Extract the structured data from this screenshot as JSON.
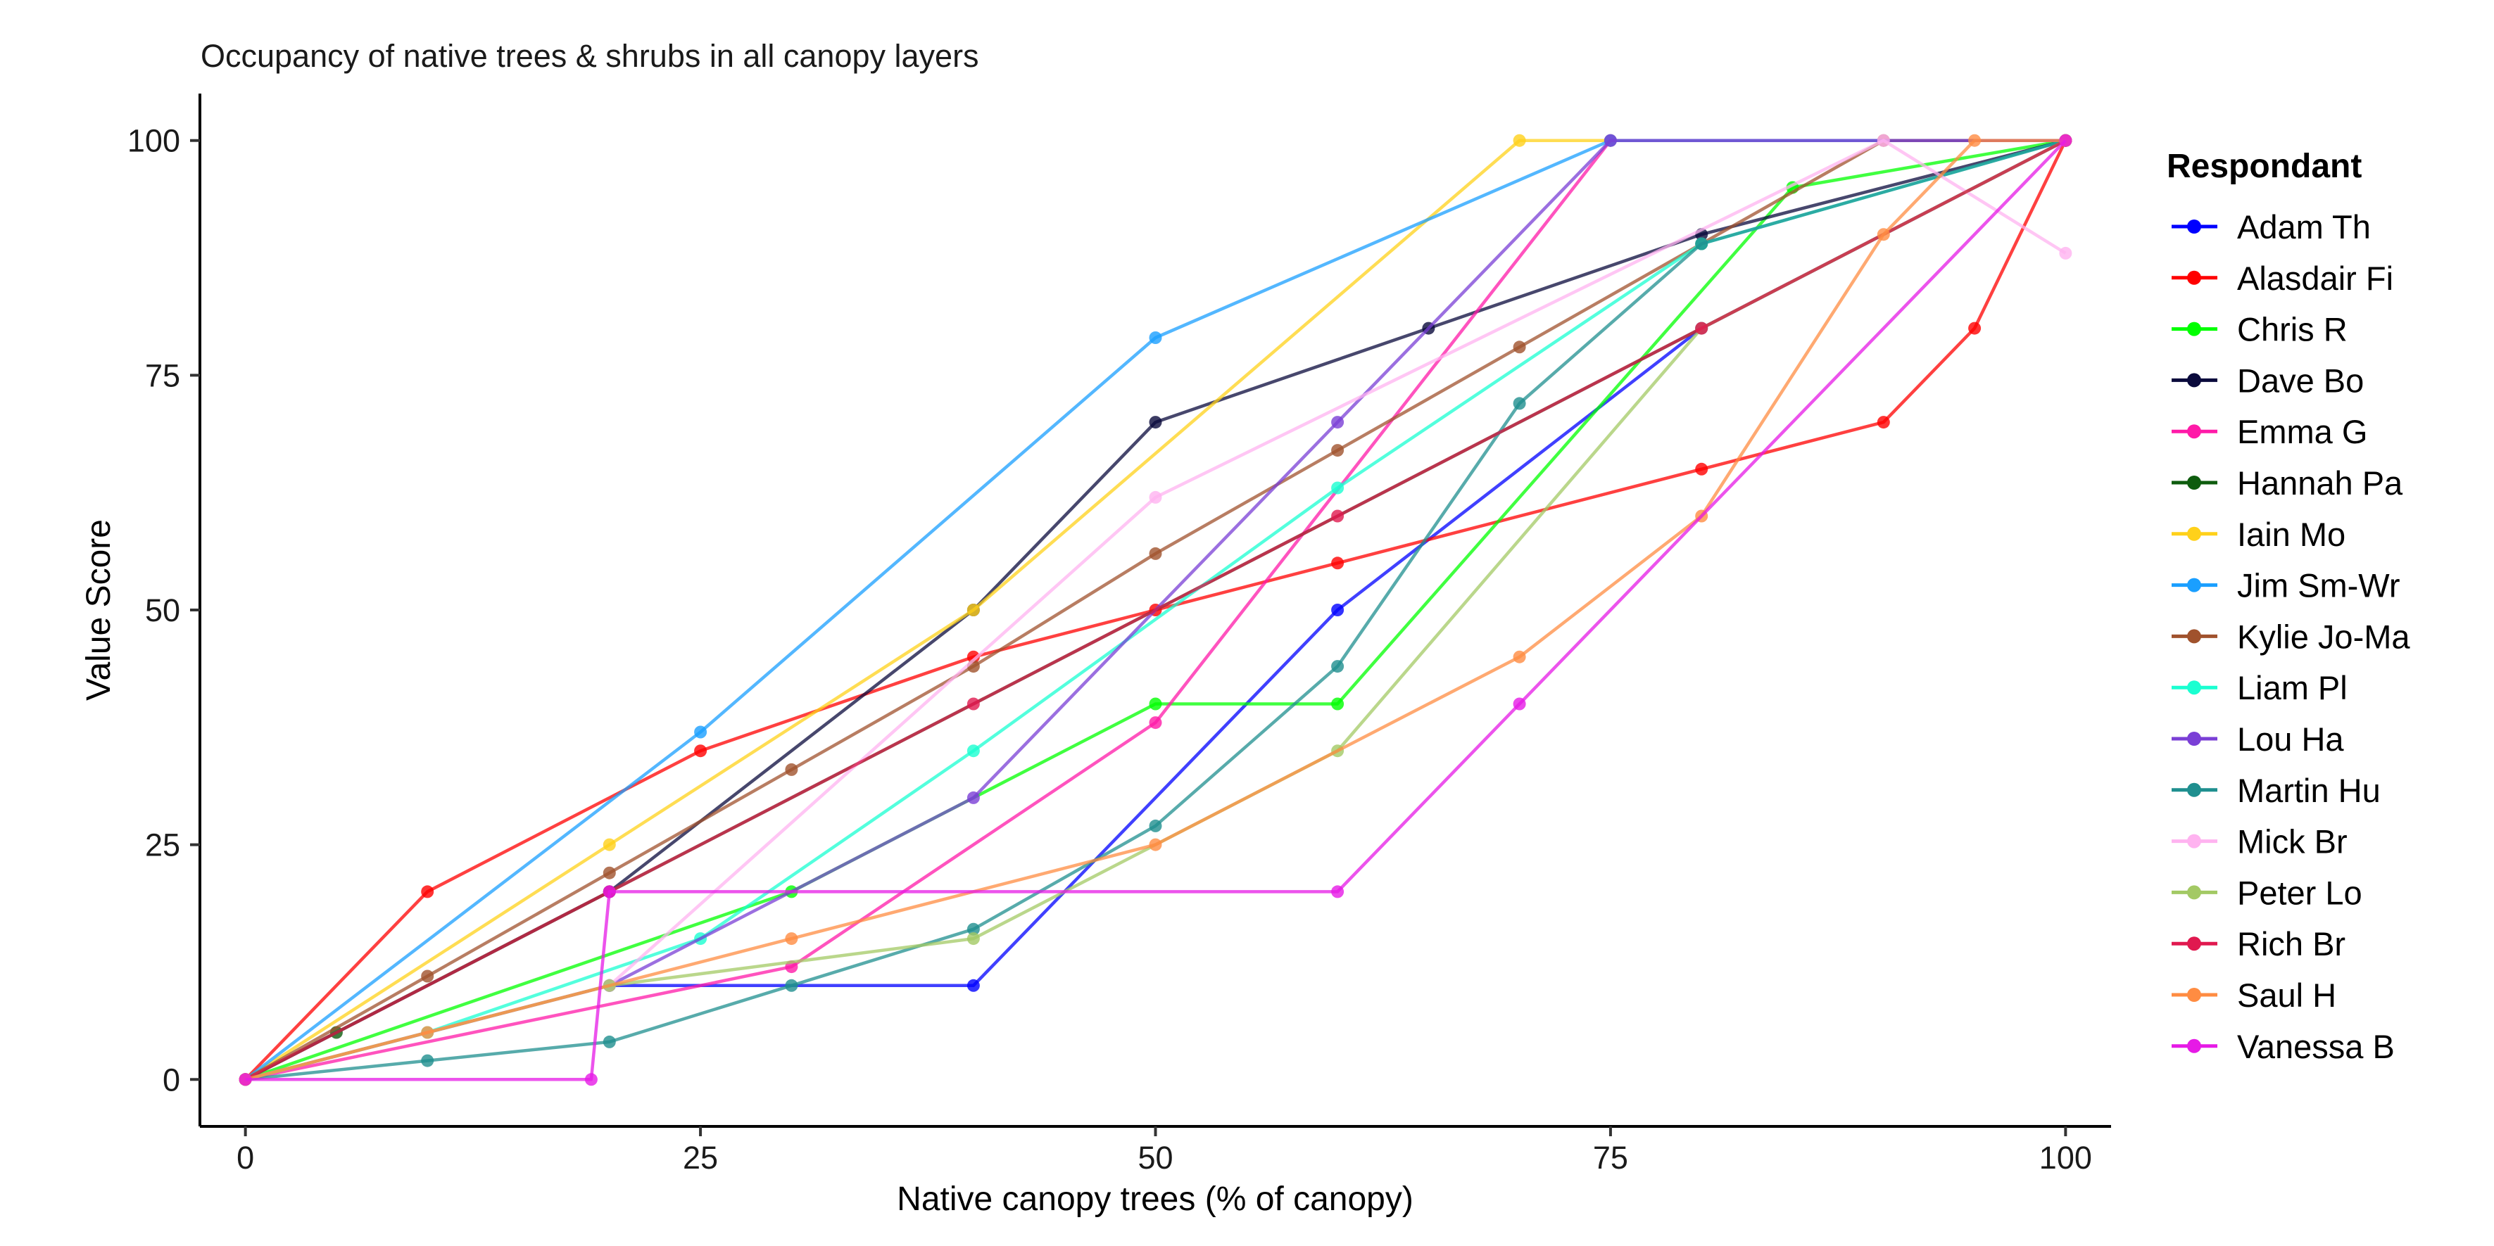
{
  "chart_data": {
    "type": "line",
    "title": "Occupancy of native trees & shrubs in all canopy layers",
    "xlabel": "Native canopy trees (% of canopy)",
    "ylabel": "Value Score",
    "xlim": [
      -2.5,
      102.5
    ],
    "ylim": [
      -5,
      105
    ],
    "xticks": [
      0,
      25,
      50,
      75,
      100
    ],
    "yticks": [
      0,
      25,
      50,
      75,
      100
    ],
    "grid": false,
    "legend": {
      "title": "Respondant",
      "position": "right"
    },
    "series": [
      {
        "name": "Adam Th",
        "color": "#0000ff",
        "x": [
          0,
          20,
          40,
          60,
          80,
          100
        ],
        "y": [
          0,
          10,
          10,
          50,
          80,
          100
        ]
      },
      {
        "name": "Alasdair Fi",
        "color": "#ff0000",
        "x": [
          0,
          10,
          25,
          40,
          50,
          60,
          80,
          90,
          95,
          100
        ],
        "y": [
          0,
          20,
          35,
          45,
          50,
          55,
          65,
          70,
          80,
          100
        ]
      },
      {
        "name": "Chris R",
        "color": "#00ff00",
        "x": [
          0,
          30,
          50,
          60,
          85,
          100
        ],
        "y": [
          0,
          20,
          40,
          40,
          95,
          100
        ]
      },
      {
        "name": "Dave Bo",
        "color": "#0a0a3c",
        "x": [
          0,
          20,
          40,
          50,
          65,
          80,
          100
        ],
        "y": [
          0,
          20,
          50,
          70,
          80,
          90,
          100
        ]
      },
      {
        "name": "Emma G",
        "color": "#ff1aa8",
        "x": [
          0,
          30,
          50,
          75,
          100
        ],
        "y": [
          0,
          12,
          38,
          100,
          100
        ]
      },
      {
        "name": "Hannah Pa",
        "color": "#0e5c0e",
        "x": [
          0,
          5,
          20,
          100
        ],
        "y": [
          0,
          5,
          20,
          100
        ]
      },
      {
        "name": "Iain Mo",
        "color": "#ffd11a",
        "x": [
          0,
          20,
          40,
          70,
          75,
          100
        ],
        "y": [
          0,
          25,
          50,
          100,
          100,
          100
        ]
      },
      {
        "name": "Jim Sm-Wr",
        "color": "#1a9fff",
        "x": [
          0,
          25,
          50,
          75,
          100
        ],
        "y": [
          0,
          37,
          79,
          100,
          100
        ]
      },
      {
        "name": "Kylie Jo-Ma",
        "color": "#a0522d",
        "x": [
          0,
          10,
          20,
          30,
          40,
          50,
          60,
          70,
          80,
          90,
          100
        ],
        "y": [
          0,
          11,
          22,
          33,
          44,
          56,
          67,
          78,
          89,
          100,
          100
        ]
      },
      {
        "name": "Liam Pl",
        "color": "#1affd1",
        "x": [
          0,
          10,
          25,
          40,
          60,
          80,
          100
        ],
        "y": [
          0,
          5,
          15,
          35,
          63,
          89,
          100
        ]
      },
      {
        "name": "Lou Ha",
        "color": "#7a3fd6",
        "x": [
          0,
          20,
          40,
          60,
          75,
          100
        ],
        "y": [
          0,
          10,
          30,
          70,
          100,
          100
        ]
      },
      {
        "name": "Martin Hu",
        "color": "#1f8f8f",
        "x": [
          0,
          10,
          20,
          30,
          40,
          50,
          60,
          70,
          80,
          100
        ],
        "y": [
          0,
          2,
          4,
          10,
          16,
          27,
          44,
          72,
          89,
          100
        ]
      },
      {
        "name": "Mick Br",
        "color": "#ffb3f0",
        "x": [
          0,
          20,
          50,
          90,
          100
        ],
        "y": [
          0,
          10,
          62,
          100,
          88
        ]
      },
      {
        "name": "Peter Lo",
        "color": "#a3c964",
        "x": [
          0,
          20,
          40,
          60,
          80,
          100
        ],
        "y": [
          0,
          10,
          15,
          35,
          80,
          100
        ]
      },
      {
        "name": "Rich Br",
        "color": "#e0194f",
        "x": [
          0,
          20,
          40,
          60,
          80,
          100
        ],
        "y": [
          0,
          20,
          40,
          60,
          80,
          100
        ]
      },
      {
        "name": "Saul H",
        "color": "#ff8c42",
        "x": [
          0,
          10,
          30,
          50,
          70,
          80,
          90,
          95,
          100
        ],
        "y": [
          0,
          5,
          15,
          25,
          45,
          60,
          90,
          100,
          100
        ]
      },
      {
        "name": "Vanessa B",
        "color": "#e61ae6",
        "x": [
          0,
          19,
          20,
          60,
          70,
          100
        ],
        "y": [
          0,
          0,
          20,
          20,
          40,
          100
        ]
      }
    ]
  }
}
